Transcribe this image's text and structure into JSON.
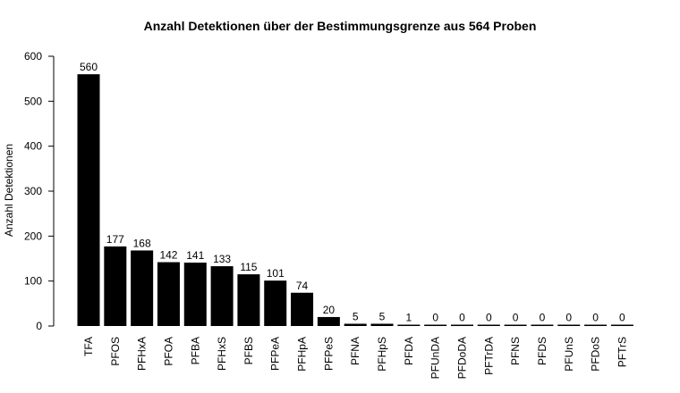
{
  "chart_data": {
    "type": "bar",
    "title": "Anzahl Detektionen über der Bestimmungsgrenze aus 564 Proben",
    "xlabel": "",
    "ylabel": "Anzahl Detektionen",
    "categories": [
      "TFA",
      "PFOS",
      "PFHxA",
      "PFOA",
      "PFBA",
      "PFHxS",
      "PFBS",
      "PFPeA",
      "PFHpA",
      "PFPeS",
      "PFNA",
      "PFHpS",
      "PFDA",
      "PFUnDA",
      "PFDoDA",
      "PFTrDA",
      "PFNS",
      "PFDS",
      "PFUnS",
      "PFDoS",
      "PFTrS"
    ],
    "values": [
      560,
      177,
      168,
      142,
      141,
      133,
      115,
      101,
      74,
      20,
      5,
      5,
      1,
      0,
      0,
      0,
      0,
      0,
      0,
      0,
      0
    ],
    "data_labels": [
      "560",
      "177",
      "168",
      "142",
      "141",
      "133",
      "115",
      "101",
      "74",
      "20",
      "5",
      "5",
      "1",
      "0",
      "0",
      "0",
      "0",
      "0",
      "0",
      "0",
      "0"
    ],
    "yticks": [
      0,
      100,
      200,
      300,
      400,
      500,
      600
    ],
    "ylim": [
      0,
      600
    ],
    "grid": false,
    "legend": "none",
    "bar_color": "#000000"
  }
}
